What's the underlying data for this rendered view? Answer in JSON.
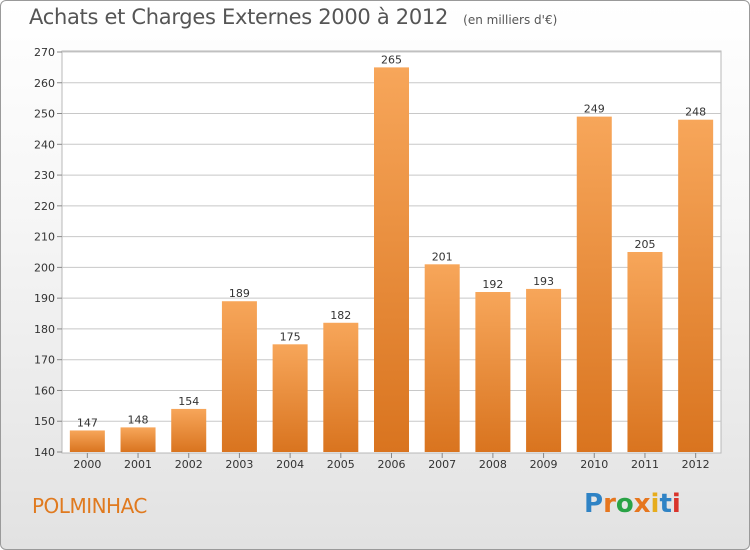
{
  "header": {
    "title": "Achats et Charges Externes 2000 à 2012",
    "unit": "(en milliers d'€)"
  },
  "footer": {
    "commune": "POLMINHAC",
    "logo_letters": [
      {
        "char": "P",
        "color": "#2f83c5"
      },
      {
        "char": "r",
        "color": "#e6761e"
      },
      {
        "char": "o",
        "color": "#2aa346"
      },
      {
        "char": "x",
        "color": "#e6761e"
      },
      {
        "char": "i",
        "color": "#e6ac1c"
      },
      {
        "char": "t",
        "color": "#2f83c5"
      },
      {
        "char": "i",
        "color": "#d9342b"
      }
    ]
  },
  "colors": {
    "bar_top": "#f7a65a",
    "bar_bottom": "#d9741f",
    "grid": "#c8c8c8",
    "axis_text": "#333333"
  },
  "chart_data": {
    "type": "bar",
    "title": "Achats et Charges Externes 2000 à 2012",
    "subtitle": "(en milliers d'€)",
    "categories": [
      "2000",
      "2001",
      "2002",
      "2003",
      "2004",
      "2005",
      "2006",
      "2007",
      "2008",
      "2009",
      "2010",
      "2011",
      "2012"
    ],
    "values": [
      147,
      148,
      154,
      189,
      175,
      182,
      265,
      201,
      192,
      193,
      249,
      205,
      248
    ],
    "ylim": [
      140,
      270
    ],
    "yticks": [
      140,
      150,
      160,
      170,
      180,
      190,
      200,
      210,
      220,
      230,
      240,
      250,
      260,
      270
    ],
    "grid": true,
    "data_labels": true,
    "xlabel": "",
    "ylabel": ""
  }
}
